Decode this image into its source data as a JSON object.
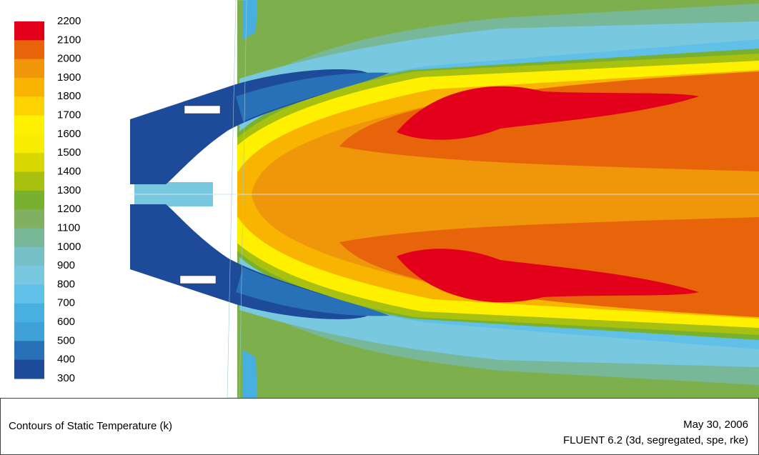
{
  "colorbar": {
    "ticks": [
      2200,
      2100,
      2000,
      1900,
      1800,
      1700,
      1600,
      1500,
      1400,
      1300,
      1200,
      1100,
      1000,
      900,
      800,
      700,
      600,
      500,
      400,
      300
    ],
    "colors": [
      "#e3001b",
      "#e8640a",
      "#f0960a",
      "#f8b400",
      "#fcd200",
      "#fff000",
      "#f8ec00",
      "#d8d800",
      "#a8c010",
      "#78b030",
      "#80b060",
      "#78b898",
      "#78c0c8",
      "#78c8e0",
      "#60c0e8",
      "#48b0e0",
      "#40a0d8",
      "#2870b8",
      "#1e4a9a"
    ]
  },
  "footer": {
    "title": "Contours of Static Temperature (k)",
    "date": "May 30, 2006",
    "software": "FLUENT 6.2 (3d, segregated, spe, rke)"
  }
}
